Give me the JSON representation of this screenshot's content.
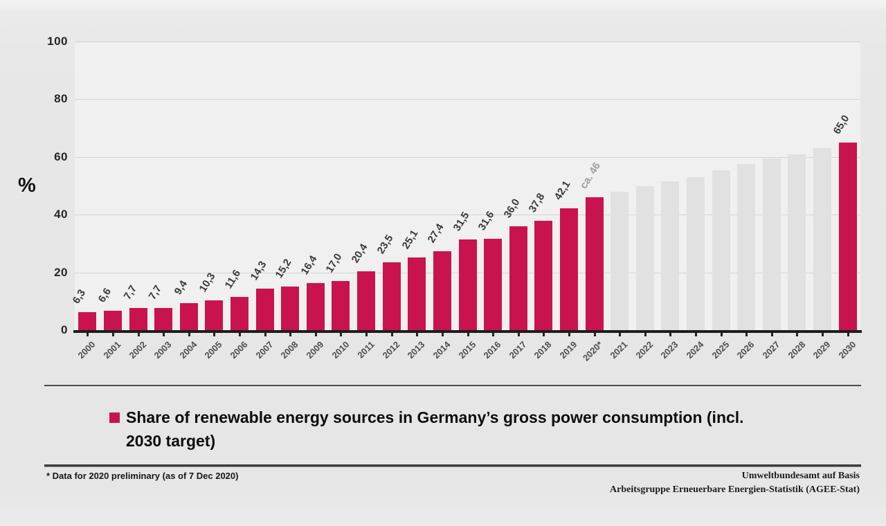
{
  "chart_data": {
    "type": "bar",
    "title": "",
    "ylabel": "%",
    "ylim": [
      0,
      100
    ],
    "yticks": [
      0,
      20,
      40,
      60,
      80,
      100
    ],
    "grid": true,
    "legend_position": "bottom",
    "bars": [
      {
        "year": "2000",
        "value": 6.3,
        "label": "6,3",
        "kind": "actual"
      },
      {
        "year": "2001",
        "value": 6.6,
        "label": "6,6",
        "kind": "actual"
      },
      {
        "year": "2002",
        "value": 7.7,
        "label": "7,7",
        "kind": "actual"
      },
      {
        "year": "2003",
        "value": 7.7,
        "label": "7,7",
        "kind": "actual"
      },
      {
        "year": "2004",
        "value": 9.4,
        "label": "9,4",
        "kind": "actual"
      },
      {
        "year": "2005",
        "value": 10.3,
        "label": "10,3",
        "kind": "actual"
      },
      {
        "year": "2006",
        "value": 11.6,
        "label": "11,6",
        "kind": "actual"
      },
      {
        "year": "2007",
        "value": 14.3,
        "label": "14,3",
        "kind": "actual"
      },
      {
        "year": "2008",
        "value": 15.2,
        "label": "15,2",
        "kind": "actual"
      },
      {
        "year": "2009",
        "value": 16.4,
        "label": "16,4",
        "kind": "actual"
      },
      {
        "year": "2010",
        "value": 17.0,
        "label": "17,0",
        "kind": "actual"
      },
      {
        "year": "2011",
        "value": 20.4,
        "label": "20,4",
        "kind": "actual"
      },
      {
        "year": "2012",
        "value": 23.5,
        "label": "23,5",
        "kind": "actual"
      },
      {
        "year": "2013",
        "value": 25.1,
        "label": "25,1",
        "kind": "actual"
      },
      {
        "year": "2014",
        "value": 27.4,
        "label": "27,4",
        "kind": "actual"
      },
      {
        "year": "2015",
        "value": 31.5,
        "label": "31,5",
        "kind": "actual"
      },
      {
        "year": "2016",
        "value": 31.6,
        "label": "31,6",
        "kind": "actual"
      },
      {
        "year": "2017",
        "value": 36.0,
        "label": "36,0",
        "kind": "actual"
      },
      {
        "year": "2018",
        "value": 37.8,
        "label": "37,8",
        "kind": "actual"
      },
      {
        "year": "2019",
        "value": 42.1,
        "label": "42,1",
        "kind": "actual"
      },
      {
        "year": "2020*",
        "value": 46.0,
        "label": "ca. 46",
        "kind": "preliminary"
      },
      {
        "year": "2021",
        "value": 48.0,
        "label": "",
        "kind": "projection"
      },
      {
        "year": "2022",
        "value": 50.0,
        "label": "",
        "kind": "projection"
      },
      {
        "year": "2023",
        "value": 51.5,
        "label": "",
        "kind": "projection"
      },
      {
        "year": "2024",
        "value": 53.0,
        "label": "",
        "kind": "projection"
      },
      {
        "year": "2025",
        "value": 55.5,
        "label": "",
        "kind": "projection"
      },
      {
        "year": "2026",
        "value": 57.5,
        "label": "",
        "kind": "projection"
      },
      {
        "year": "2027",
        "value": 59.5,
        "label": "",
        "kind": "projection"
      },
      {
        "year": "2028",
        "value": 61.0,
        "label": "",
        "kind": "projection"
      },
      {
        "year": "2029",
        "value": 63.0,
        "label": "",
        "kind": "projection"
      },
      {
        "year": "2030",
        "value": 65.0,
        "label": "65,0",
        "kind": "target"
      }
    ],
    "colors": {
      "actual": "#c9134f",
      "preliminary": "#c9134f",
      "target": "#c9134f",
      "projection": "#e1e1e1",
      "value_label": "#383838",
      "preliminary_label": "#9e9e9e"
    }
  },
  "axis": {
    "percent_symbol": "%"
  },
  "legend": {
    "marker_color": "#c9134f",
    "line1": "Share of renewable energy sources in Germany’s gross power consumption (incl.",
    "line2": "2030 target)"
  },
  "footnote": "* Data for 2020 preliminary (as of 7 Dec 2020)",
  "source": {
    "line1": "Umweltbundesamt auf Basis",
    "line2": "Arbeitsgruppe Erneuerbare Energien-Statistik (AGEE-Stat)"
  }
}
